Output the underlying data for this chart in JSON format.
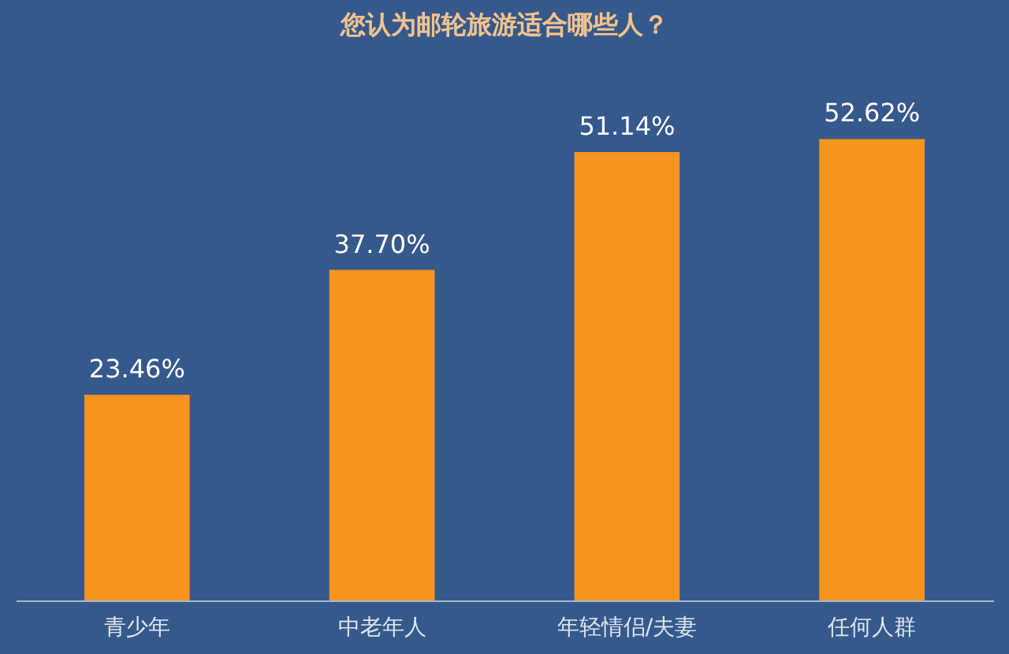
{
  "chart_data": {
    "type": "bar",
    "title": "您认为邮轮旅游适合哪些人？",
    "categories": [
      "青少年",
      "中老年人",
      "年轻情侣/夫妻",
      "任何人群"
    ],
    "values": [
      23.46,
      37.7,
      51.14,
      52.62
    ],
    "value_labels": [
      "23.46%",
      "37.70%",
      "51.14%",
      "52.62%"
    ],
    "color": "#f7941d"
  }
}
